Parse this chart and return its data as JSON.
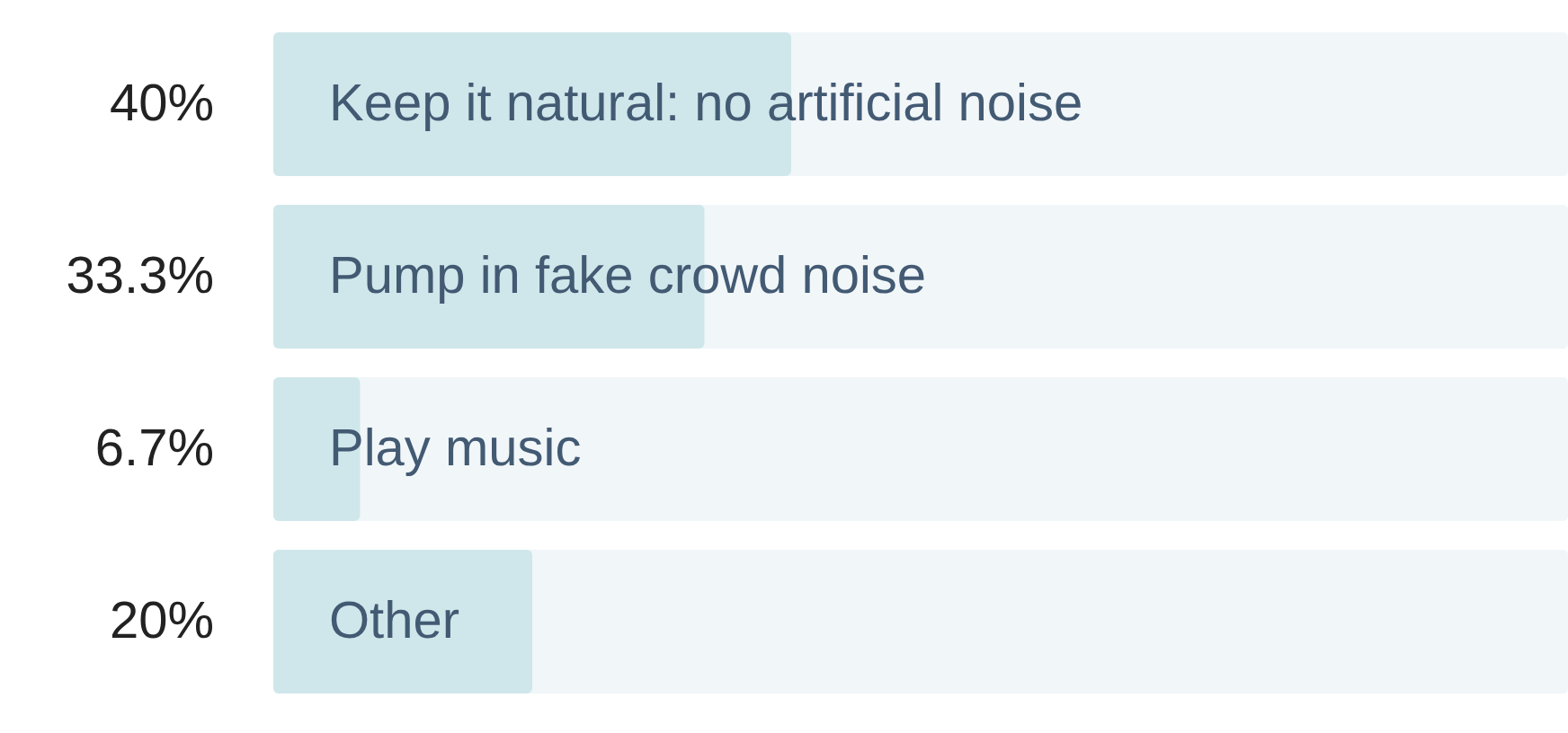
{
  "chart_data": {
    "type": "bar",
    "orientation": "horizontal",
    "categories": [
      "Keep it natural: no artificial noise",
      "Pump in fake crowd noise",
      "Play music",
      "Other"
    ],
    "values": [
      40,
      33.3,
      6.7,
      20
    ],
    "value_labels": [
      "40%",
      "33.3%",
      "6.7%",
      "20%"
    ],
    "color": "#cfe7eb",
    "xlim": [
      0,
      100
    ],
    "tick_labels": "y"
  }
}
